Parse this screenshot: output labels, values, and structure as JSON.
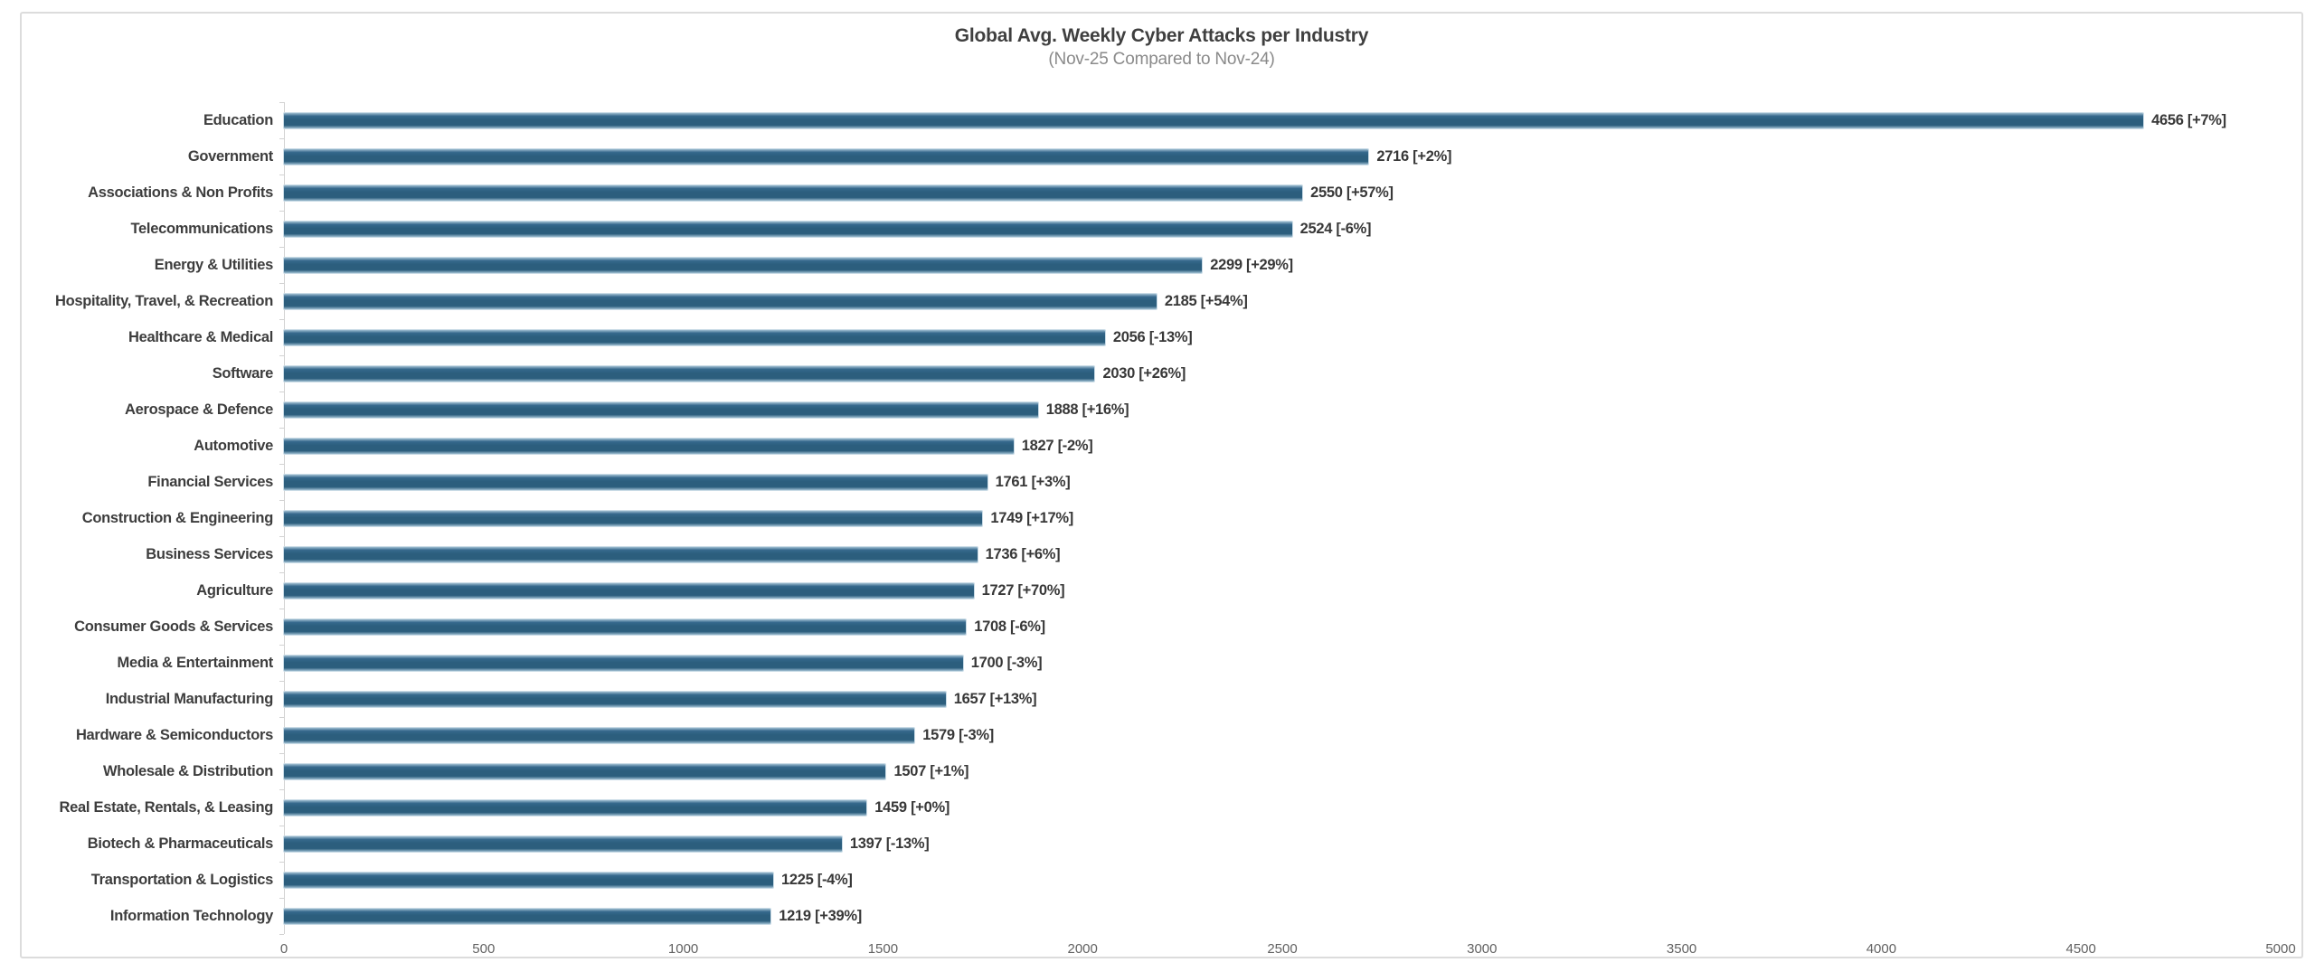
{
  "chart_data": {
    "type": "bar",
    "orientation": "horizontal",
    "title": "Global Avg. Weekly Cyber Attacks per Industry",
    "subtitle": "(Nov-25 Compared to Nov-24)",
    "categories": [
      "Education",
      "Government",
      "Associations & Non Profits",
      "Telecommunications",
      "Energy & Utilities",
      "Hospitality, Travel, & Recreation",
      "Healthcare & Medical",
      "Software",
      "Aerospace & Defence",
      "Automotive",
      "Financial Services",
      "Construction & Engineering",
      "Business Services",
      "Agriculture",
      "Consumer Goods & Services",
      "Media & Entertainment",
      "Industrial Manufacturing",
      "Hardware & Semiconductors",
      "Wholesale & Distribution",
      "Real Estate, Rentals, & Leasing",
      "Biotech & Pharmaceuticals",
      "Transportation & Logistics",
      "Information Technology"
    ],
    "values": [
      4656,
      2716,
      2550,
      2524,
      2299,
      2185,
      2056,
      2030,
      1888,
      1827,
      1761,
      1749,
      1736,
      1727,
      1708,
      1700,
      1657,
      1579,
      1507,
      1459,
      1397,
      1225,
      1219
    ],
    "changes": [
      "+7%",
      "+2%",
      "+57%",
      "-6%",
      "+29%",
      "+54%",
      "-13%",
      "+26%",
      "+16%",
      "-2%",
      "+3%",
      "+17%",
      "+6%",
      "+70%",
      "-6%",
      "-3%",
      "+13%",
      "-3%",
      "+1%",
      "+0%",
      "-13%",
      "-4%",
      "+39%"
    ],
    "data_labels": [
      "4656 [+7%]",
      "2716 [+2%]",
      "2550 [+57%]",
      "2524 [-6%]",
      "2299 [+29%]",
      "2185 [+54%]",
      "2056 [-13%]",
      "2030 [+26%]",
      "1888 [+16%]",
      "1827 [-2%]",
      "1761 [+3%]",
      "1749 [+17%]",
      "1736 [+6%]",
      "1727 [+70%]",
      "1708 [-6%]",
      "1700 [-3%]",
      "1657 [+13%]",
      "1579 [-3%]",
      "1507 [+1%]",
      "1459 [+0%]",
      "1397 [-13%]",
      "1225 [-4%]",
      "1219 [+39%]"
    ],
    "xlim": [
      0,
      5000
    ],
    "x_ticks": [
      0,
      500,
      1000,
      1500,
      2000,
      2500,
      3000,
      3500,
      4000,
      4500,
      5000
    ],
    "grid": "off",
    "legend": "none",
    "bar_color": "#2c5e7d",
    "colors": {
      "title": "#3f3f3f",
      "subtitle": "#8a8a8a",
      "category_label": "#3d3d3d",
      "value_label": "#383838",
      "axis_line": "#d2d2d2",
      "tick_label": "#626262",
      "frame_border": "#dcdcdc",
      "background": "#ffffff"
    }
  }
}
